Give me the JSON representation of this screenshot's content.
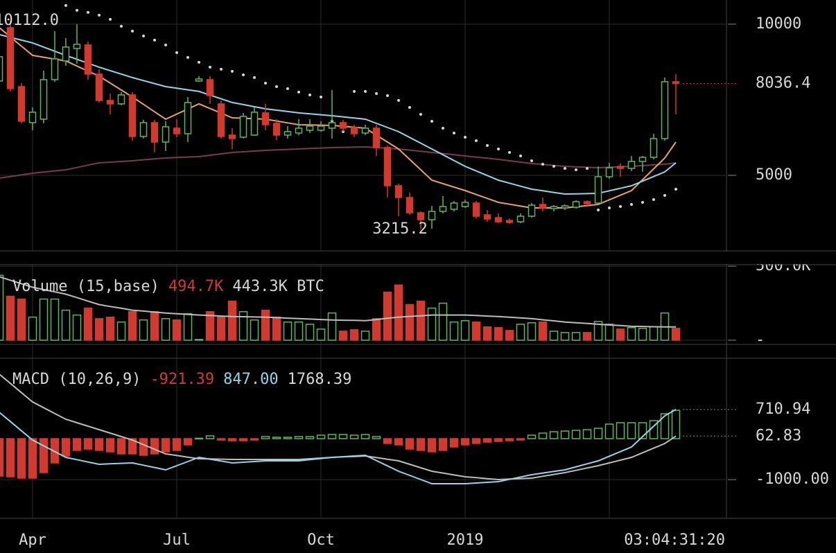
{
  "chart_data": [
    {
      "type": "candlestick",
      "categories": [
        null,
        null,
        null,
        "Apr",
        null,
        null,
        null,
        null,
        null,
        null,
        null,
        null,
        null,
        null,
        null,
        null,
        "Jul",
        null,
        null,
        null,
        null,
        null,
        null,
        null,
        null,
        null,
        null,
        null,
        null,
        "Oct",
        null,
        null,
        null,
        null,
        null,
        null,
        null,
        null,
        null,
        null,
        null,
        null,
        "2019",
        null,
        null,
        null,
        null,
        null,
        null,
        null,
        null,
        null,
        null,
        null,
        null,
        null,
        null,
        null,
        null,
        null,
        null,
        null
      ],
      "open": [
        8119,
        9885,
        7935,
        6743,
        6857,
        8165,
        8784,
        9197,
        9312,
        8348,
        7477,
        7362,
        7660,
        6284,
        6743,
        6100,
        6559,
        6376,
        8119,
        8165,
        7362,
        6330,
        6261,
        6330,
        7064,
        6720,
        6330,
        6399,
        6490,
        6490,
        6559,
        6743,
        6582,
        6399,
        6559,
        5917,
        4655,
        4265,
        3760,
        3531,
        3806,
        3875,
        3967,
        4082,
        3692,
        3600,
        3508,
        3462,
        3646,
        4036,
        3898,
        3921,
        3944,
        4127,
        4082,
        4953,
        5297,
        5228,
        5458,
        5595,
        6215,
        8096
      ],
      "high": [
        8968,
        10112,
        8050,
        7247,
        8463,
        9770,
        9541,
        10000,
        9427,
        8509,
        7706,
        7752,
        7752,
        6835,
        6835,
        6789,
        6857,
        7591,
        8280,
        8280,
        7477,
        6559,
        7064,
        7247,
        7362,
        6857,
        6628,
        6857,
        6857,
        6789,
        7821,
        6835,
        6674,
        6674,
        6674,
        5986,
        4724,
        4426,
        3806,
        3990,
        4311,
        4150,
        4196,
        4150,
        3852,
        3738,
        3577,
        3738,
        4082,
        4265,
        4013,
        4036,
        4173,
        4173,
        5297,
        5412,
        5389,
        5641,
        5641,
        6376,
        8234,
        8348
      ],
      "low": [
        8050,
        7775,
        6720,
        6490,
        6720,
        8096,
        8624,
        8692,
        8165,
        7408,
        7018,
        7316,
        6146,
        6215,
        5756,
        5802,
        6261,
        6100,
        8096,
        7362,
        6215,
        5871,
        6215,
        6307,
        6490,
        6169,
        6215,
        6330,
        6399,
        6445,
        6215,
        6445,
        6261,
        6330,
        5642,
        4265,
        3646,
        3692,
        3215.2,
        3233,
        3738,
        3806,
        3921,
        3577,
        3462,
        3416,
        3393,
        3416,
        3600,
        3806,
        3806,
        3852,
        3898,
        3990,
        4013,
        4884,
        4953,
        5137,
        5114,
        5526,
        6146,
        7018
      ],
      "close": [
        8922,
        7867,
        6789,
        7087,
        8165,
        8853,
        9243,
        9335,
        8348,
        7477,
        7362,
        7660,
        6284,
        6743,
        6100,
        6605,
        6376,
        7408,
        8188,
        7637,
        6284,
        6215,
        6949,
        7087,
        6674,
        6330,
        6445,
        6559,
        6628,
        6628,
        6743,
        6559,
        6376,
        6559,
        5917,
        4655,
        4265,
        3760,
        3531,
        3806,
        3967,
        4082,
        4105,
        3646,
        3554,
        3462,
        3439,
        3646,
        4013,
        3921,
        3967,
        3990,
        4127,
        4059,
        4953,
        5251,
        5228,
        5458,
        5595,
        6215,
        8096,
        8036.4
      ],
      "up_color": "#5cb85c",
      "down_color": "#d13b2f",
      "ylim": [
        2500,
        10800
      ],
      "yticks": [
        10000,
        5000
      ],
      "xticks": [
        3,
        16,
        29,
        42,
        55
      ],
      "grid": true,
      "series": [
        {
          "color": "#7a3b4e",
          "style": "line",
          "values": [
            4907,
            4961,
            5014,
            5068,
            5106,
            5145,
            5183,
            5259,
            5336,
            5412,
            5435,
            5458,
            5481,
            5512,
            5542,
            5573,
            5588,
            5604,
            5619,
            5665,
            5710,
            5756,
            5779,
            5802,
            5825,
            5840,
            5856,
            5871,
            5886,
            5902,
            5917,
            5925,
            5932,
            5940,
            5917,
            5894,
            5871,
            5833,
            5794,
            5756,
            5718,
            5679,
            5641,
            5603,
            5565,
            5527,
            5481,
            5435,
            5389,
            5358,
            5328,
            5297,
            5282,
            5266,
            5251,
            5266,
            5282,
            5297,
            5320,
            5343,
            5366,
            5412
          ]
        },
        {
          "color": "#e8a263",
          "style": "line",
          "values": [
            9885,
            9579,
            9274,
            8968,
            8907,
            8845,
            8784,
            8616,
            8448,
            8280,
            8050,
            7821,
            7591,
            7346,
            7102,
            6857,
            7025,
            7194,
            7362,
            7209,
            7056,
            6903,
            6888,
            6872,
            6857,
            6796,
            6735,
            6674,
            6666,
            6659,
            6651,
            6620,
            6590,
            6559,
            6330,
            6100,
            5871,
            5527,
            5183,
            4839,
            4724,
            4610,
            4495,
            4365,
            4235,
            4105,
            4044,
            3982,
            3921,
            3921,
            3921,
            3921,
            3959,
            3998,
            4036,
            4189,
            4342,
            4495,
            4854,
            5214,
            5573,
            6100
          ]
        },
        {
          "color": "#93d6ea",
          "style": "line",
          "values": [
            9656,
            9564,
            9473,
            9381,
            9243,
            9106,
            8968,
            8838,
            8708,
            8578,
            8463,
            8349,
            8234,
            8134,
            8035,
            7935,
            7882,
            7828,
            7775,
            7653,
            7530,
            7408,
            7339,
            7270,
            7201,
            7155,
            7110,
            7064,
            7033,
            7003,
            6972,
            6934,
            6895,
            6857,
            6719,
            6582,
            6444,
            6253,
            6062,
            5871,
            5680,
            5488,
            5297,
            5144,
            4992,
            4839,
            4739,
            4640,
            4540,
            4487,
            4433,
            4380,
            4388,
            4395,
            4403,
            4487,
            4571,
            4655,
            4808,
            4961,
            5114,
            5412
          ]
        },
        {
          "color": "#d8d8d8",
          "style": "dots",
          "values": [
            null,
            null,
            null,
            null,
            null,
            null,
            10619,
            10459,
            10390,
            10298,
            10161,
            9931,
            9771,
            9610,
            9472,
            9312,
            9060,
            8899,
            8738,
            8578,
            8509,
            8440,
            8325,
            8234,
            8050,
            7935,
            7867,
            7752,
            7660,
            7591,
            6788,
            6444,
            7775,
            7775,
            7706,
            7637,
            7477,
            7247,
            7018,
            6788,
            6559,
            6399,
            6261,
            6146,
            5986,
            5871,
            5756,
            5641,
            5481,
            5366,
            5297,
            5229,
            5183,
            5229,
            3852,
            3921,
            3967,
            4036,
            4105,
            4196,
            4334,
            4540
          ]
        }
      ],
      "annotations": [
        {
          "value": 10112,
          "label": "10112.0"
        },
        {
          "value": 3215.2,
          "label": "3215.2"
        }
      ],
      "countdown": "03:04:31:20"
    },
    {
      "type": "volume",
      "values": [
        439000,
        297000,
        278000,
        156000,
        278000,
        278000,
        203000,
        170000,
        217000,
        146000,
        156000,
        123000,
        193000,
        137000,
        193000,
        146000,
        137000,
        179000,
        5000,
        193000,
        156000,
        264000,
        193000,
        137000,
        203000,
        156000,
        123000,
        123000,
        108000,
        75000,
        184000,
        61000,
        71000,
        61000,
        146000,
        325000,
        373000,
        241000,
        264000,
        217000,
        250000,
        123000,
        132000,
        123000,
        90000,
        85000,
        66000,
        108000,
        118000,
        123000,
        61000,
        52000,
        52000,
        52000,
        127000,
        108000,
        75000,
        85000,
        80000,
        90000,
        184000,
        80000
      ],
      "ylim": [
        -18900,
        594300
      ],
      "yticks": [
        {
          "value": 500000,
          "label": "500.0K"
        },
        {
          "value": 0,
          "label": "-"
        }
      ],
      "series": [
        {
          "color": "#bdbdbd",
          "values": [
            429000,
            405000,
            382000,
            358000,
            342000,
            327000,
            311000,
            288000,
            264000,
            241000,
            228000,
            216000,
            203000,
            197000,
            190000,
            184000,
            179000,
            175000,
            170000,
            167000,
            163000,
            160000,
            159000,
            157000,
            156000,
            153000,
            149000,
            146000,
            143000,
            140000,
            137000,
            135000,
            134000,
            132000,
            140000,
            148000,
            156000,
            161000,
            165000,
            170000,
            170000,
            170000,
            170000,
            167000,
            163000,
            160000,
            155000,
            151000,
            146000,
            138000,
            131000,
            123000,
            118000,
            113000,
            108000,
            103000,
            99000,
            94000,
            93000,
            91000,
            90000,
            90000
          ]
        }
      ],
      "legend": [
        {
          "text": "Volume (15,base)",
          "color": "#d8d8d8"
        },
        {
          "text": "494.7K",
          "color": "#d13b2f"
        },
        {
          "text": "443.3K BTC",
          "color": "#d8d8d8"
        }
      ]
    },
    {
      "type": "macd",
      "values": [
        -913,
        -930,
        -963,
        -963,
        -828,
        -592,
        -423,
        -287,
        -254,
        -287,
        -321,
        -372,
        -372,
        -406,
        -372,
        -321,
        -287,
        -152,
        10,
        68,
        -34,
        -51,
        -51,
        -34,
        51,
        34,
        34,
        51,
        51,
        85,
        101,
        101,
        85,
        101,
        51,
        -118,
        -152,
        -254,
        -287,
        -321,
        -287,
        -203,
        -152,
        -118,
        -85,
        -68,
        -51,
        -34,
        85,
        135,
        169,
        186,
        203,
        220,
        254,
        355,
        389,
        389,
        389,
        439,
        608,
        693
      ],
      "up_color": "#5cb85c",
      "down_color": "#d13b2f",
      "ylim": [
        -1944,
        1944
      ],
      "yticks": [
        {
          "value": -1000,
          "label": "-1000.00"
        }
      ],
      "series": [
        {
          "color": "#bdbdbd",
          "values": [
            1572,
            1347,
            1121,
            896,
            755,
            614,
            473,
            389,
            304,
            220,
            135,
            51,
            -34,
            -147,
            -259,
            -372,
            -411,
            -451,
            -490,
            -496,
            -501,
            -507,
            -507,
            -507,
            -507,
            -507,
            -507,
            -507,
            -490,
            -473,
            -456,
            -445,
            -434,
            -423,
            -462,
            -502,
            -541,
            -625,
            -710,
            -794,
            -839,
            -885,
            -930,
            -952,
            -975,
            -997,
            -986,
            -974,
            -963,
            -918,
            -873,
            -828,
            -772,
            -715,
            -659,
            -591,
            -524,
            -456,
            -343,
            -231,
            -118,
            62.83
          ]
        },
        {
          "color": "#93d6ea",
          "values": [
            642,
            417,
            191,
            -34,
            -175,
            -315,
            -456,
            -512,
            -569,
            -625,
            -614,
            -602,
            -591,
            -647,
            -704,
            -760,
            -659,
            -557,
            -456,
            -501,
            -546,
            -591,
            -574,
            -558,
            -541,
            -541,
            -541,
            -541,
            -513,
            -484,
            -456,
            -439,
            -423,
            -406,
            -535,
            -665,
            -794,
            -896,
            -997,
            -1099,
            -1099,
            -1099,
            -1099,
            -1082,
            -1065,
            -1048,
            -992,
            -935,
            -879,
            -839,
            -800,
            -760,
            -687,
            -614,
            -541,
            -428,
            -316,
            -203,
            51,
            304,
            558,
            710.94
          ]
        }
      ],
      "legend": [
        {
          "text": "MACD (10,26,9)",
          "color": "#d8d8d8"
        },
        {
          "text": "-921.39",
          "color": "#d13b2f"
        },
        {
          "text": "847.00",
          "color": "#93d6ea"
        },
        {
          "text": "1768.39",
          "color": "#d8d8d8"
        }
      ]
    }
  ]
}
